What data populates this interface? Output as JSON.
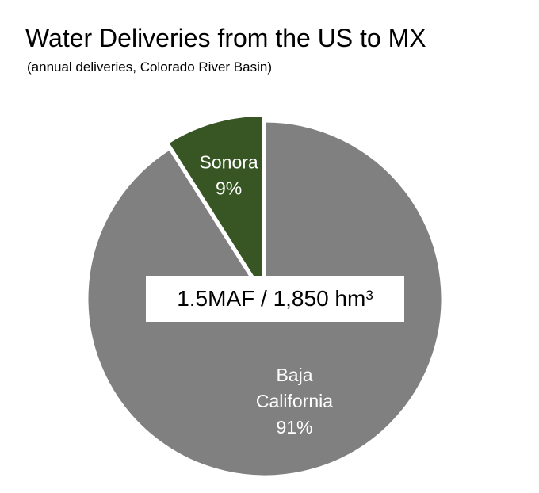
{
  "title": "Water Deliveries from the US to MX",
  "subtitle": "(annual deliveries, Colorado River Basin)",
  "colors": {
    "baja_california": "#808080",
    "sonora": "#375623",
    "separator": "#ffffff",
    "label_text": "#ffffff"
  },
  "callout": {
    "text": "1.5MAF / 1,850 hm",
    "superscript": "3"
  },
  "chart_data": {
    "type": "pie",
    "title": "Water Deliveries from the US to MX",
    "subtitle": "(annual deliveries, Colorado River Basin)",
    "slices": [
      {
        "key": "sonora",
        "label_lines": [
          "Sonora",
          "9%"
        ],
        "value": 9
      },
      {
        "key": "baja_california",
        "label_lines": [
          "Baja",
          "California",
          "91%"
        ],
        "value": 91
      }
    ],
    "start_angle_degrees": 0,
    "direction": "counterclockwise",
    "exploded": "sonora",
    "legend": "none"
  }
}
